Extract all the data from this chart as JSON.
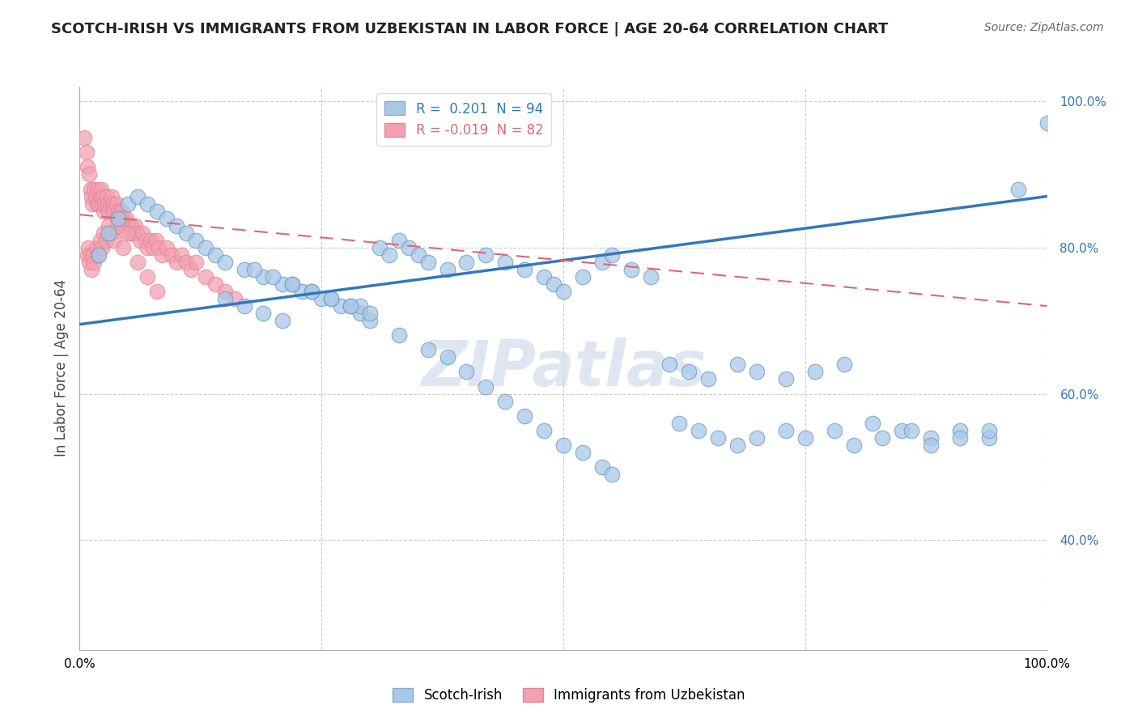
{
  "title": "SCOTCH-IRISH VS IMMIGRANTS FROM UZBEKISTAN IN LABOR FORCE | AGE 20-64 CORRELATION CHART",
  "source": "Source: ZipAtlas.com",
  "ylabel": "In Labor Force | Age 20-64",
  "legend_blue_label": "Scotch-Irish",
  "legend_pink_label": "Immigrants from Uzbekistan",
  "R_blue": 0.201,
  "N_blue": 94,
  "R_pink": -0.019,
  "N_pink": 82,
  "blue_color": "#a8c8e8",
  "pink_color": "#f4a0b0",
  "blue_line_color": "#3377bb",
  "pink_line_color": "#dd6677",
  "grid_color": "#cccccc",
  "watermark_color": "#c8d8e8",
  "blue_scatter": {
    "x": [
      0.02,
      0.03,
      0.04,
      0.05,
      0.06,
      0.07,
      0.08,
      0.09,
      0.1,
      0.11,
      0.12,
      0.13,
      0.14,
      0.15,
      0.17,
      0.19,
      0.21,
      0.23,
      0.25,
      0.27,
      0.29,
      0.31,
      0.32,
      0.33,
      0.34,
      0.35,
      0.36,
      0.38,
      0.4,
      0.42,
      0.44,
      0.46,
      0.48,
      0.49,
      0.5,
      0.52,
      0.54,
      0.55,
      0.57,
      0.59,
      0.61,
      0.63,
      0.65,
      0.68,
      0.7,
      0.73,
      0.76,
      0.79,
      0.82,
      0.85,
      0.88,
      0.91,
      0.94,
      0.97,
      1.0,
      0.3,
      0.33,
      0.36,
      0.38,
      0.4,
      0.42,
      0.44,
      0.46,
      0.48,
      0.5,
      0.52,
      0.54,
      0.55,
      0.22,
      0.24,
      0.26,
      0.28,
      0.29,
      0.3,
      0.18,
      0.2,
      0.22,
      0.24,
      0.26,
      0.28,
      0.15,
      0.17,
      0.19,
      0.21,
      0.62,
      0.64,
      0.66,
      0.68,
      0.7,
      0.73,
      0.75,
      0.78,
      0.8,
      0.83,
      0.86,
      0.88,
      0.91,
      0.94
    ],
    "y": [
      0.79,
      0.82,
      0.84,
      0.86,
      0.87,
      0.86,
      0.85,
      0.84,
      0.83,
      0.82,
      0.81,
      0.8,
      0.79,
      0.78,
      0.77,
      0.76,
      0.75,
      0.74,
      0.73,
      0.72,
      0.71,
      0.8,
      0.79,
      0.81,
      0.8,
      0.79,
      0.78,
      0.77,
      0.78,
      0.79,
      0.78,
      0.77,
      0.76,
      0.75,
      0.74,
      0.76,
      0.78,
      0.79,
      0.77,
      0.76,
      0.64,
      0.63,
      0.62,
      0.64,
      0.63,
      0.62,
      0.63,
      0.64,
      0.56,
      0.55,
      0.54,
      0.55,
      0.54,
      0.88,
      0.97,
      0.7,
      0.68,
      0.66,
      0.65,
      0.63,
      0.61,
      0.59,
      0.57,
      0.55,
      0.53,
      0.52,
      0.5,
      0.49,
      0.75,
      0.74,
      0.73,
      0.72,
      0.72,
      0.71,
      0.77,
      0.76,
      0.75,
      0.74,
      0.73,
      0.72,
      0.73,
      0.72,
      0.71,
      0.7,
      0.56,
      0.55,
      0.54,
      0.53,
      0.54,
      0.55,
      0.54,
      0.55,
      0.53,
      0.54,
      0.55,
      0.53,
      0.54,
      0.55
    ]
  },
  "pink_scatter": {
    "x": [
      0.005,
      0.007,
      0.008,
      0.01,
      0.011,
      0.012,
      0.013,
      0.015,
      0.016,
      0.018,
      0.019,
      0.02,
      0.021,
      0.022,
      0.023,
      0.024,
      0.025,
      0.026,
      0.028,
      0.029,
      0.03,
      0.032,
      0.033,
      0.034,
      0.035,
      0.036,
      0.038,
      0.039,
      0.04,
      0.042,
      0.043,
      0.045,
      0.046,
      0.048,
      0.05,
      0.052,
      0.054,
      0.055,
      0.057,
      0.059,
      0.062,
      0.065,
      0.068,
      0.07,
      0.073,
      0.076,
      0.079,
      0.082,
      0.085,
      0.09,
      0.095,
      0.1,
      0.105,
      0.11,
      0.115,
      0.12,
      0.13,
      0.14,
      0.15,
      0.16,
      0.008,
      0.009,
      0.01,
      0.011,
      0.012,
      0.014,
      0.015,
      0.017,
      0.019,
      0.021,
      0.023,
      0.025,
      0.027,
      0.03,
      0.033,
      0.036,
      0.04,
      0.045,
      0.05,
      0.06,
      0.07,
      0.08
    ],
    "y": [
      0.95,
      0.93,
      0.91,
      0.9,
      0.88,
      0.87,
      0.86,
      0.88,
      0.87,
      0.86,
      0.88,
      0.86,
      0.87,
      0.88,
      0.86,
      0.87,
      0.85,
      0.86,
      0.87,
      0.86,
      0.85,
      0.86,
      0.87,
      0.85,
      0.86,
      0.85,
      0.86,
      0.84,
      0.85,
      0.84,
      0.85,
      0.84,
      0.83,
      0.84,
      0.83,
      0.82,
      0.83,
      0.82,
      0.83,
      0.82,
      0.81,
      0.82,
      0.81,
      0.8,
      0.81,
      0.8,
      0.81,
      0.8,
      0.79,
      0.8,
      0.79,
      0.78,
      0.79,
      0.78,
      0.77,
      0.78,
      0.76,
      0.75,
      0.74,
      0.73,
      0.79,
      0.8,
      0.78,
      0.79,
      0.77,
      0.79,
      0.78,
      0.8,
      0.79,
      0.81,
      0.8,
      0.82,
      0.81,
      0.83,
      0.82,
      0.81,
      0.83,
      0.8,
      0.82,
      0.78,
      0.76,
      0.74
    ]
  },
  "blue_line": {
    "x0": 0.0,
    "y0": 0.695,
    "x1": 1.0,
    "y1": 0.87
  },
  "pink_line": {
    "x0": 0.0,
    "y0": 0.845,
    "x1": 1.0,
    "y1": 0.72
  },
  "xlim": [
    0.0,
    1.0
  ],
  "ylim": [
    0.25,
    1.02
  ],
  "yticks": [
    0.4,
    0.6,
    0.8,
    1.0
  ],
  "ytick_labels": [
    "40.0%",
    "60.0%",
    "80.0%",
    "100.0%"
  ],
  "xticks": [
    0.0,
    1.0
  ],
  "xtick_labels": [
    "0.0%",
    "100.0%"
  ]
}
